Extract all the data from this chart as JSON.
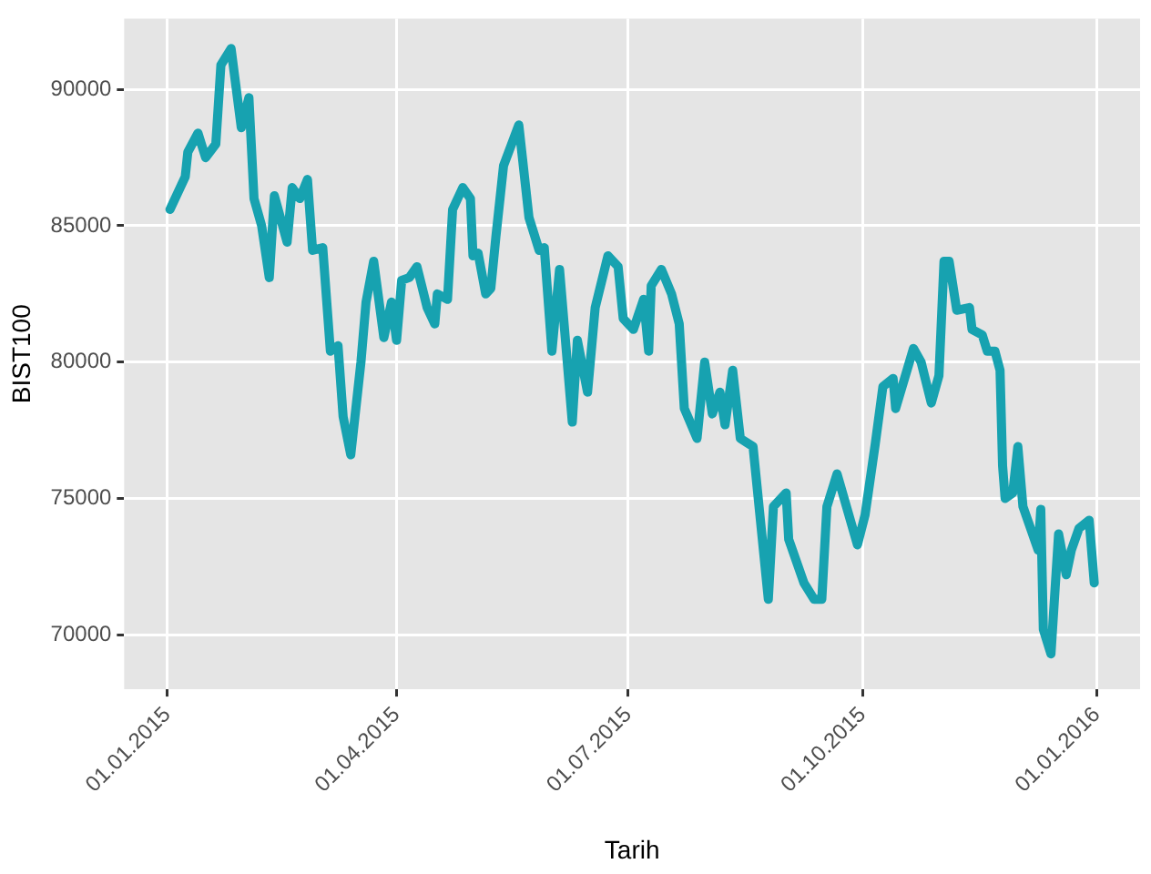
{
  "chart_data": {
    "type": "line",
    "xlabel": "Tarih",
    "ylabel": "BIST100",
    "x": [
      "2015-01-02",
      "2015-01-08",
      "2015-01-09",
      "2015-01-13",
      "2015-01-16",
      "2015-01-20",
      "2015-01-22",
      "2015-01-26",
      "2015-01-30",
      "2015-02-02",
      "2015-02-04",
      "2015-02-07",
      "2015-02-10",
      "2015-02-12",
      "2015-02-17",
      "2015-02-19",
      "2015-02-22",
      "2015-02-25",
      "2015-02-27",
      "2015-03-03",
      "2015-03-06",
      "2015-03-09",
      "2015-03-11",
      "2015-03-14",
      "2015-03-18",
      "2015-03-20",
      "2015-03-23",
      "2015-03-27",
      "2015-03-30",
      "2015-04-01",
      "2015-04-03",
      "2015-04-06",
      "2015-04-09",
      "2015-04-13",
      "2015-04-16",
      "2015-04-17",
      "2015-04-21",
      "2015-04-23",
      "2015-04-27",
      "2015-04-30",
      "2015-05-01",
      "2015-05-03",
      "2015-05-06",
      "2015-05-08",
      "2015-05-10",
      "2015-05-13",
      "2015-05-19",
      "2015-05-23",
      "2015-05-27",
      "2015-05-29",
      "2015-06-01",
      "2015-06-04",
      "2015-06-09",
      "2015-06-11",
      "2015-06-15",
      "2015-06-18",
      "2015-06-23",
      "2015-06-27",
      "2015-06-29",
      "2015-07-03",
      "2015-07-07",
      "2015-07-09",
      "2015-07-10",
      "2015-07-14",
      "2015-07-18",
      "2015-07-21",
      "2015-07-23",
      "2015-07-28",
      "2015-07-31",
      "2015-08-03",
      "2015-08-06",
      "2015-08-08",
      "2015-08-11",
      "2015-08-14",
      "2015-08-19",
      "2015-08-25",
      "2015-08-27",
      "2015-09-01",
      "2015-09-02",
      "2015-09-08",
      "2015-09-12",
      "2015-09-15",
      "2015-09-17",
      "2015-09-21",
      "2015-09-29",
      "2015-10-02",
      "2015-10-06",
      "2015-10-09",
      "2015-10-13",
      "2015-10-14",
      "2015-10-21",
      "2015-10-24",
      "2015-10-28",
      "2015-10-31",
      "2015-11-02",
      "2015-11-04",
      "2015-11-07",
      "2015-11-12",
      "2015-11-13",
      "2015-11-17",
      "2015-11-19",
      "2015-11-22",
      "2015-11-24",
      "2015-11-25",
      "2015-11-26",
      "2015-11-29",
      "2015-12-01",
      "2015-12-03",
      "2015-12-06",
      "2015-12-09",
      "2015-12-10",
      "2015-12-11",
      "2015-12-14",
      "2015-12-17",
      "2015-12-20",
      "2015-12-22",
      "2015-12-25",
      "2015-12-29",
      "2015-12-31"
    ],
    "series": [
      {
        "color": "#17a2b0",
        "values": [
          85600,
          86800,
          87700,
          88400,
          87500,
          88000,
          90900,
          91500,
          88600,
          89700,
          86000,
          85000,
          83100,
          86100,
          84400,
          86400,
          86000,
          86700,
          84100,
          84200,
          80400,
          80600,
          78000,
          76600,
          80000,
          82200,
          83700,
          80900,
          82200,
          80800,
          83000,
          83100,
          83500,
          82000,
          81400,
          82500,
          82300,
          85600,
          86400,
          86000,
          83900,
          84000,
          82500,
          82700,
          84600,
          87200,
          88700,
          85300,
          84100,
          84200,
          80400,
          83400,
          77800,
          80800,
          78900,
          82000,
          83900,
          83500,
          81600,
          81200,
          82300,
          80400,
          82800,
          83400,
          82500,
          81400,
          78300,
          77200,
          80000,
          78100,
          78900,
          77700,
          79700,
          77200,
          76900,
          71300,
          74700,
          75200,
          73500,
          71900,
          71300,
          71300,
          74700,
          75900,
          73300,
          74400,
          77000,
          79100,
          79400,
          78300,
          80500,
          80000,
          78500,
          79500,
          83700,
          83700,
          81900,
          82000,
          81200,
          81000,
          80400,
          80400,
          79700,
          76200,
          75000,
          75200,
          76900,
          74700,
          73900,
          73100,
          74600,
          70200,
          69300,
          73700,
          72200,
          73100,
          73900,
          74200,
          71900
        ]
      }
    ],
    "xlim": [
      "2014-12-15",
      "2016-01-18"
    ],
    "xticks": [
      {
        "value": "2015-01-01",
        "label": "01.01.2015"
      },
      {
        "value": "2015-04-01",
        "label": "01.04.2015"
      },
      {
        "value": "2015-07-01",
        "label": "01.07.2015"
      },
      {
        "value": "2015-10-01",
        "label": "01.10.2015"
      },
      {
        "value": "2016-01-01",
        "label": "01.01.2016"
      }
    ],
    "ylim": [
      68000,
      92600
    ],
    "yticks": [
      70000,
      75000,
      80000,
      85000,
      90000
    ],
    "grid": true,
    "marker": "none",
    "line_style": "solid",
    "legend": false
  }
}
